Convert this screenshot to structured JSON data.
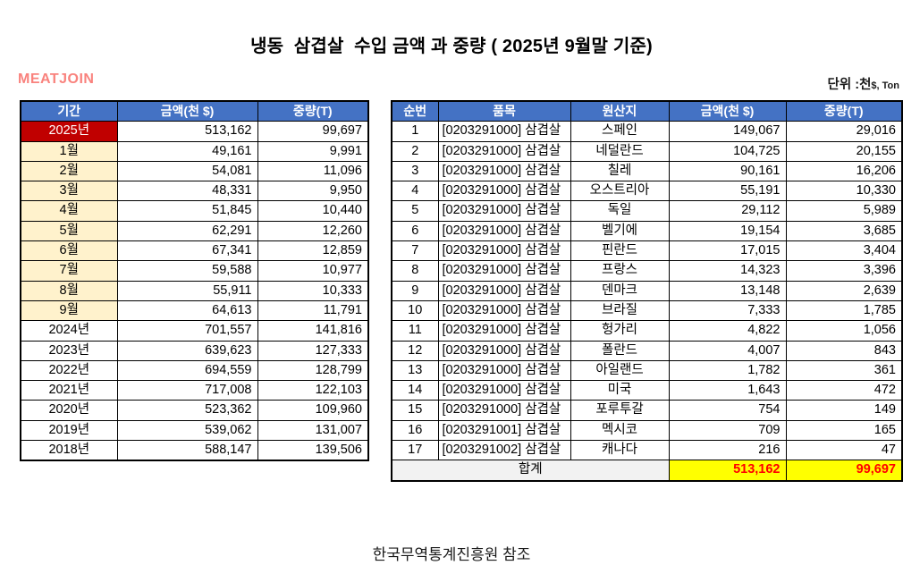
{
  "page": {
    "title": "냉동  삼겹살  수입 금액 과 중량 ( 2025년 9월말 기준)",
    "brand": "MEATJOIN",
    "unit_prefix": "단위 :천",
    "unit_suffix": "$, Ton",
    "footer": "한국무역통계진흥원 참조"
  },
  "colors": {
    "header_blue": "#4472C4",
    "current_year_red": "#C00000",
    "month_cream": "#FFF2CC",
    "total_gray": "#F2F2F2",
    "total_yellow": "#FFFF00",
    "total_text_red": "#FF0000",
    "brand_pink": "#F9827D"
  },
  "period_table": {
    "headers": [
      "기간",
      "금액(천 $)",
      "중량(T)"
    ],
    "rows": [
      {
        "period": "2025년",
        "amount": "513,162",
        "weight": "99,697",
        "style": "current"
      },
      {
        "period": "1월",
        "amount": "49,161",
        "weight": "9,991",
        "style": "month"
      },
      {
        "period": "2월",
        "amount": "54,081",
        "weight": "11,096",
        "style": "month"
      },
      {
        "period": "3월",
        "amount": "48,331",
        "weight": "9,950",
        "style": "month"
      },
      {
        "period": "4월",
        "amount": "51,845",
        "weight": "10,440",
        "style": "month"
      },
      {
        "period": "5월",
        "amount": "62,291",
        "weight": "12,260",
        "style": "month"
      },
      {
        "period": "6월",
        "amount": "67,341",
        "weight": "12,859",
        "style": "month"
      },
      {
        "period": "7월",
        "amount": "59,588",
        "weight": "10,977",
        "style": "month"
      },
      {
        "period": "8월",
        "amount": "55,911",
        "weight": "10,333",
        "style": "month"
      },
      {
        "period": "9월",
        "amount": "64,613",
        "weight": "11,791",
        "style": "month"
      },
      {
        "period": "2024년",
        "amount": "701,557",
        "weight": "141,816",
        "style": "year"
      },
      {
        "period": "2023년",
        "amount": "639,623",
        "weight": "127,333",
        "style": "year"
      },
      {
        "period": "2022년",
        "amount": "694,559",
        "weight": "128,799",
        "style": "year"
      },
      {
        "period": "2021년",
        "amount": "717,008",
        "weight": "122,103",
        "style": "year"
      },
      {
        "period": "2020년",
        "amount": "523,362",
        "weight": "109,960",
        "style": "year"
      },
      {
        "period": "2019년",
        "amount": "539,062",
        "weight": "131,007",
        "style": "year"
      },
      {
        "period": "2018년",
        "amount": "588,147",
        "weight": "139,506",
        "style": "year"
      }
    ]
  },
  "origin_table": {
    "headers": [
      "순번",
      "품목",
      "원산지",
      "금액(천 $)",
      "중량(T)"
    ],
    "rows": [
      {
        "no": "1",
        "item": "[0203291000] 삼겹살",
        "origin": "스페인",
        "amount": "149,067",
        "weight": "29,016"
      },
      {
        "no": "2",
        "item": "[0203291000] 삼겹살",
        "origin": "네덜란드",
        "amount": "104,725",
        "weight": "20,155"
      },
      {
        "no": "3",
        "item": "[0203291000] 삼겹살",
        "origin": "칠레",
        "amount": "90,161",
        "weight": "16,206"
      },
      {
        "no": "4",
        "item": "[0203291000] 삼겹살",
        "origin": "오스트리아",
        "amount": "55,191",
        "weight": "10,330"
      },
      {
        "no": "5",
        "item": "[0203291000] 삼겹살",
        "origin": "독일",
        "amount": "29,112",
        "weight": "5,989"
      },
      {
        "no": "6",
        "item": "[0203291000] 삼겹살",
        "origin": "벨기에",
        "amount": "19,154",
        "weight": "3,685"
      },
      {
        "no": "7",
        "item": "[0203291000] 삼겹살",
        "origin": "핀란드",
        "amount": "17,015",
        "weight": "3,404"
      },
      {
        "no": "8",
        "item": "[0203291000] 삼겹살",
        "origin": "프랑스",
        "amount": "14,323",
        "weight": "3,396"
      },
      {
        "no": "9",
        "item": "[0203291000] 삼겹살",
        "origin": "덴마크",
        "amount": "13,148",
        "weight": "2,639"
      },
      {
        "no": "10",
        "item": "[0203291000] 삼겹살",
        "origin": "브라질",
        "amount": "7,333",
        "weight": "1,785"
      },
      {
        "no": "11",
        "item": "[0203291000] 삼겹살",
        "origin": "헝가리",
        "amount": "4,822",
        "weight": "1,056"
      },
      {
        "no": "12",
        "item": "[0203291000] 삼겹살",
        "origin": "폴란드",
        "amount": "4,007",
        "weight": "843"
      },
      {
        "no": "13",
        "item": "[0203291000] 삼겹살",
        "origin": "아일랜드",
        "amount": "1,782",
        "weight": "361"
      },
      {
        "no": "14",
        "item": "[0203291000] 삼겹살",
        "origin": "미국",
        "amount": "1,643",
        "weight": "472"
      },
      {
        "no": "15",
        "item": "[0203291000] 삼겹살",
        "origin": "포루투갈",
        "amount": "754",
        "weight": "149"
      },
      {
        "no": "16",
        "item": "[0203291001] 삼겹살",
        "origin": "멕시코",
        "amount": "709",
        "weight": "165"
      },
      {
        "no": "17",
        "item": "[0203291002] 삼겹살",
        "origin": "캐나다",
        "amount": "216",
        "weight": "47"
      }
    ],
    "total_row": {
      "label": "합계",
      "amount": "513,162",
      "weight": "99,697"
    }
  }
}
